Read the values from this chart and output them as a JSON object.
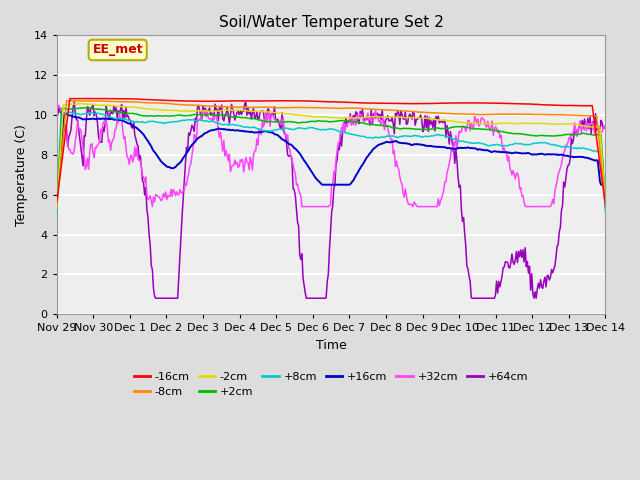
{
  "title": "Soil/Water Temperature Set 2",
  "xlabel": "Time",
  "ylabel": "Temperature (C)",
  "ylim": [
    0,
    14
  ],
  "yticks": [
    0,
    2,
    4,
    6,
    8,
    10,
    12,
    14
  ],
  "xtick_labels": [
    "Nov 29",
    "Nov 30",
    "Dec 1",
    "Dec 2",
    "Dec 3",
    "Dec 4",
    "Dec 5",
    "Dec 6",
    "Dec 7",
    "Dec 8",
    "Dec 9",
    "Dec 10",
    "Dec 11",
    "Dec 12",
    "Dec 13",
    "Dec 14"
  ],
  "annotation_text": "EE_met",
  "annotation_color": "#cc0000",
  "annotation_bg": "#ffffcc",
  "annotation_border": "#bbaa00",
  "legend_entries": [
    {
      "label": "-16cm",
      "color": "#ff0000"
    },
    {
      "label": "-8cm",
      "color": "#ff8800"
    },
    {
      "label": "-2cm",
      "color": "#dddd00"
    },
    {
      "label": "+2cm",
      "color": "#00bb00"
    },
    {
      "label": "+8cm",
      "color": "#00cccc"
    },
    {
      "label": "+16cm",
      "color": "#0000cc"
    },
    {
      "label": "+32cm",
      "color": "#ff44ff"
    },
    {
      "label": "+64cm",
      "color": "#9900bb"
    }
  ],
  "bg_color": "#dddddd",
  "plot_bg_color": "#eeeeee",
  "grid_color": "#ffffff",
  "title_fontsize": 11,
  "axis_label_fontsize": 9,
  "tick_fontsize": 8
}
